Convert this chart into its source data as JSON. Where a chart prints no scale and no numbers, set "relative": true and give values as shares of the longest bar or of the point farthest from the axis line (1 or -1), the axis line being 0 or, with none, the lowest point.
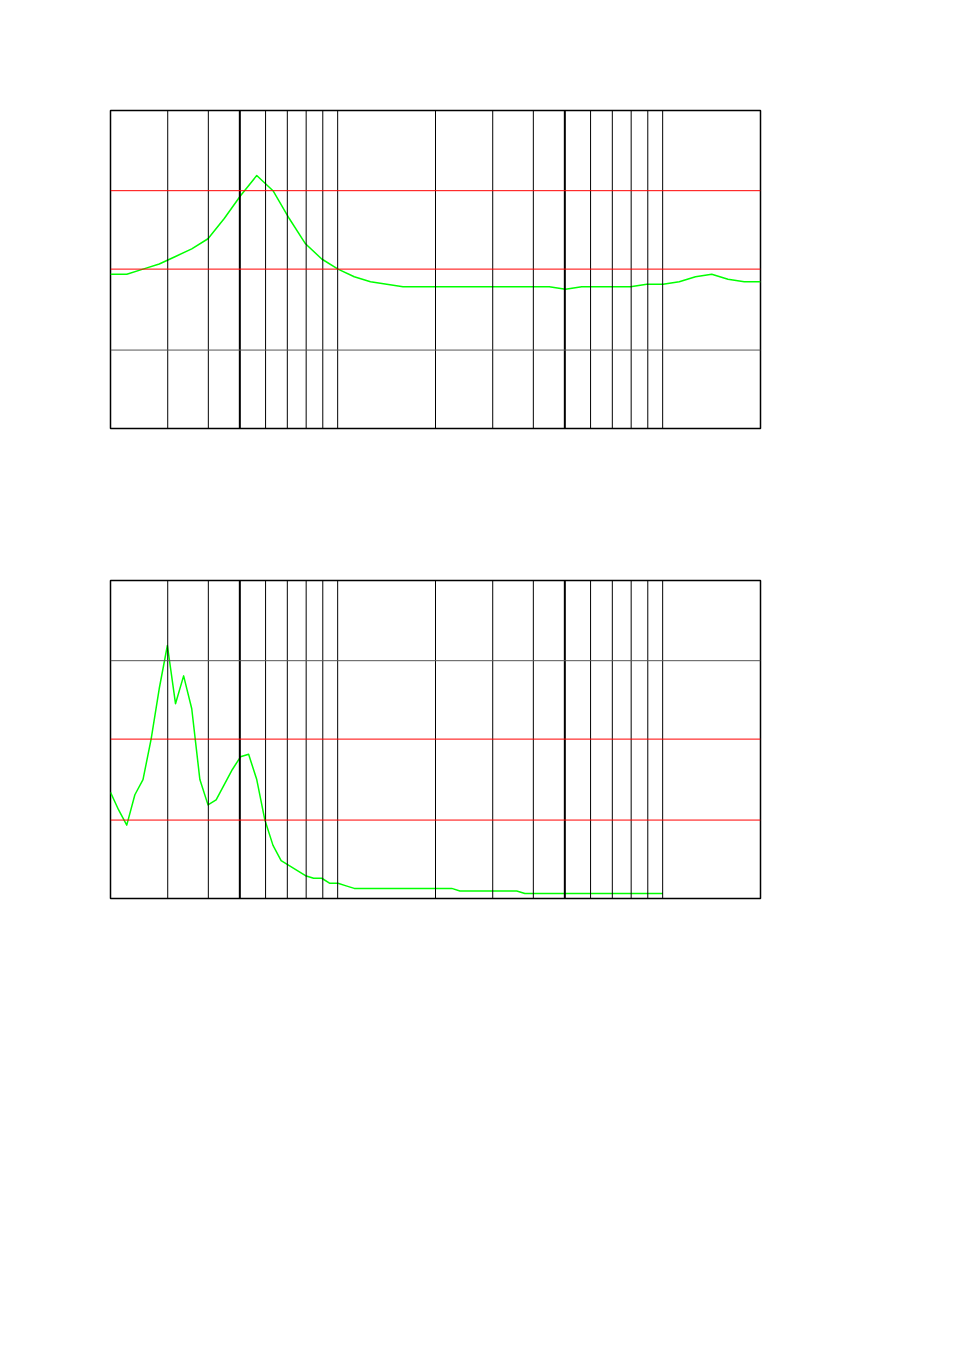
{
  "chart_data": [
    {
      "type": "line",
      "relative": true,
      "grid": true,
      "categories": [
        null,
        null,
        null,
        null,
        null,
        null,
        null,
        null,
        null,
        null,
        null,
        null,
        null,
        null,
        null,
        null,
        null,
        null,
        null,
        null,
        null,
        null,
        null,
        null,
        null,
        null,
        null,
        null,
        null,
        null,
        null,
        null,
        null,
        null,
        null,
        null,
        null,
        null,
        null,
        null,
        null
      ],
      "ref_lines": [
        {
          "axis": "y",
          "value": 0.94,
          "color": "#ff0000"
        },
        {
          "axis": "y",
          "value": 0.63,
          "color": "#ff0000"
        },
        {
          "axis": "y",
          "value": 0.31,
          "color": "#555555"
        }
      ],
      "series": [
        {
          "color": "#00ff00",
          "values": [
            0.61,
            0.61,
            0.63,
            0.65,
            0.68,
            0.71,
            0.75,
            0.83,
            0.92,
            1.0,
            0.94,
            0.83,
            0.73,
            0.67,
            0.63,
            0.6,
            0.58,
            0.57,
            0.56,
            0.56,
            0.56,
            0.56,
            0.56,
            0.56,
            0.56,
            0.56,
            0.56,
            0.56,
            0.55,
            0.56,
            0.56,
            0.56,
            0.56,
            0.57,
            0.57,
            0.58,
            0.6,
            0.61,
            0.59,
            0.58,
            0.58
          ]
        }
      ]
    },
    {
      "type": "line",
      "relative": true,
      "grid": true,
      "categories": [
        null,
        null,
        null,
        null,
        null,
        null,
        null,
        null,
        null,
        null,
        null,
        null,
        null,
        null,
        null,
        null,
        null,
        null,
        null,
        null,
        null,
        null,
        null,
        null,
        null,
        null,
        null,
        null,
        null,
        null,
        null,
        null,
        null,
        null,
        null,
        null,
        null,
        null,
        null,
        null,
        null,
        null,
        null,
        null,
        null,
        null,
        null,
        null,
        null,
        null,
        null,
        null,
        null,
        null,
        null,
        null,
        null,
        null,
        null,
        null,
        null,
        null,
        null,
        null,
        null,
        null,
        null,
        null,
        null,
        null,
        null,
        null,
        null,
        null,
        null,
        null,
        null,
        null,
        null,
        null,
        null
      ],
      "ref_lines": [
        {
          "axis": "y",
          "value": 0.94,
          "color": "#555555"
        },
        {
          "axis": "y",
          "value": 0.63,
          "color": "#ff0000"
        },
        {
          "axis": "y",
          "value": 0.31,
          "color": "#ff0000"
        }
      ],
      "series": [
        {
          "color": "#00ff00",
          "values": [
            0.42,
            0.35,
            0.29,
            0.41,
            0.47,
            0.63,
            0.83,
            1.0,
            0.77,
            0.88,
            0.75,
            0.47,
            0.37,
            0.39,
            0.45,
            0.51,
            0.56,
            0.57,
            0.47,
            0.31,
            0.21,
            0.15,
            0.13,
            0.11,
            0.09,
            0.08,
            0.08,
            0.06,
            0.06,
            0.05,
            0.04,
            0.04,
            0.04,
            0.04,
            0.04,
            0.04,
            0.04,
            0.04,
            0.04,
            0.04,
            0.04,
            0.04,
            0.04,
            0.03,
            0.03,
            0.03,
            0.03,
            0.03,
            0.03,
            0.03,
            0.03,
            0.02,
            0.02,
            0.02,
            0.02,
            0.02,
            0.02,
            0.02,
            0.02,
            0.02,
            0.02,
            0.02,
            0.02,
            0.02,
            0.02,
            0.02,
            0.02,
            0.02,
            0.02,
            null,
            null,
            null,
            null,
            null,
            null,
            null,
            null,
            null,
            null,
            null,
            null
          ]
        }
      ]
    }
  ]
}
